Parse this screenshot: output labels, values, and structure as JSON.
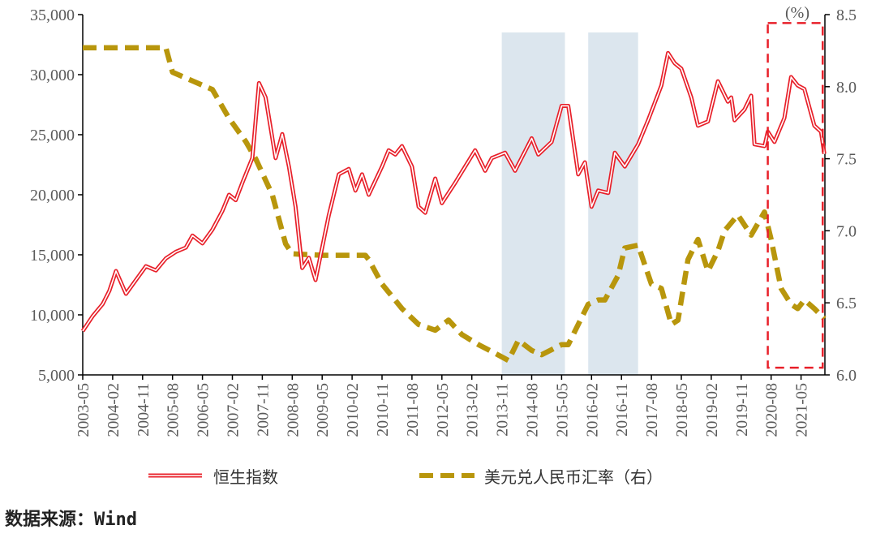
{
  "chart_data": {
    "type": "line",
    "title": "",
    "y_left": {
      "ylim": [
        5000,
        35000
      ],
      "ticks": [
        "5,000",
        "10,000",
        "15,000",
        "20,000",
        "25,000",
        "30,000",
        "35,000"
      ]
    },
    "y_right": {
      "unit_label": "(%)",
      "ylim": [
        6.0,
        8.5
      ],
      "ticks": [
        "6.0",
        "6.5",
        "7.0",
        "7.5",
        "8.0",
        "8.5"
      ]
    },
    "x_ticks": [
      "2003-05",
      "2004-02",
      "2004-11",
      "2005-08",
      "2006-05",
      "2007-02",
      "2007-11",
      "2008-08",
      "2009-05",
      "2010-02",
      "2010-11",
      "2011-08",
      "2012-05",
      "2013-02",
      "2013-11",
      "2014-08",
      "2015-05",
      "2016-02",
      "2016-11",
      "2017-08",
      "2018-05",
      "2019-02",
      "2019-11",
      "2020-08",
      "2021-05"
    ],
    "x_range": [
      "2003-05",
      "2021-12"
    ],
    "grid": false,
    "legend_position": "bottom",
    "shaded_periods": [
      [
        "2013-11",
        "2015-06"
      ],
      [
        "2016-01",
        "2017-04"
      ]
    ],
    "highlight_box": {
      "x": [
        "2020-07",
        "2021-12"
      ],
      "y_left": [
        5600,
        34300
      ],
      "color": "#E8202A"
    },
    "series": [
      {
        "name": "恒生指数",
        "axis": "left",
        "color": "#E8202A",
        "points": [
          [
            "2003-05",
            8650
          ],
          [
            "2003-08",
            9900
          ],
          [
            "2003-11",
            10900
          ],
          [
            "2004-01",
            12000
          ],
          [
            "2004-03",
            13650
          ],
          [
            "2004-06",
            11750
          ],
          [
            "2004-09",
            12900
          ],
          [
            "2004-12",
            14050
          ],
          [
            "2005-03",
            13700
          ],
          [
            "2005-06",
            14700
          ],
          [
            "2005-09",
            15250
          ],
          [
            "2005-12",
            15600
          ],
          [
            "2006-02",
            16600
          ],
          [
            "2006-05",
            15950
          ],
          [
            "2006-08",
            17100
          ],
          [
            "2006-11",
            18650
          ],
          [
            "2007-01",
            20000
          ],
          [
            "2007-03",
            19550
          ],
          [
            "2007-05",
            21000
          ],
          [
            "2007-08",
            23050
          ],
          [
            "2007-10",
            29300
          ],
          [
            "2007-12",
            28100
          ],
          [
            "2008-03",
            23050
          ],
          [
            "2008-05",
            25050
          ],
          [
            "2008-07",
            22350
          ],
          [
            "2008-09",
            19000
          ],
          [
            "2008-11",
            13900
          ],
          [
            "2009-01",
            14750
          ],
          [
            "2009-03",
            12900
          ],
          [
            "2009-07",
            18300
          ],
          [
            "2009-10",
            21700
          ],
          [
            "2010-01",
            22150
          ],
          [
            "2010-03",
            20350
          ],
          [
            "2010-05",
            21700
          ],
          [
            "2010-07",
            20000
          ],
          [
            "2010-11",
            22350
          ],
          [
            "2011-01",
            23700
          ],
          [
            "2011-03",
            23350
          ],
          [
            "2011-05",
            24050
          ],
          [
            "2011-08",
            22350
          ],
          [
            "2011-10",
            19000
          ],
          [
            "2011-12",
            18500
          ],
          [
            "2012-03",
            21350
          ],
          [
            "2012-05",
            19300
          ],
          [
            "2012-09",
            21000
          ],
          [
            "2013-03",
            23700
          ],
          [
            "2013-06",
            22000
          ],
          [
            "2013-08",
            23050
          ],
          [
            "2013-12",
            23500
          ],
          [
            "2014-03",
            22000
          ],
          [
            "2014-08",
            24700
          ],
          [
            "2014-10",
            23350
          ],
          [
            "2015-02",
            24400
          ],
          [
            "2015-05",
            27400
          ],
          [
            "2015-07",
            27400
          ],
          [
            "2015-10",
            21700
          ],
          [
            "2015-12",
            22700
          ],
          [
            "2016-02",
            19000
          ],
          [
            "2016-04",
            20350
          ],
          [
            "2016-07",
            20150
          ],
          [
            "2016-09",
            23500
          ],
          [
            "2016-12",
            22350
          ],
          [
            "2017-04",
            24200
          ],
          [
            "2017-07",
            26200
          ],
          [
            "2017-11",
            29100
          ],
          [
            "2018-01",
            31800
          ],
          [
            "2018-03",
            30950
          ],
          [
            "2018-05",
            30500
          ],
          [
            "2018-08",
            28100
          ],
          [
            "2018-10",
            25750
          ],
          [
            "2019-01",
            26100
          ],
          [
            "2019-04",
            29450
          ],
          [
            "2019-07",
            27750
          ],
          [
            "2019-08",
            28100
          ],
          [
            "2019-09",
            26200
          ],
          [
            "2019-12",
            27100
          ],
          [
            "2020-02",
            28250
          ],
          [
            "2020-03",
            24200
          ],
          [
            "2020-06",
            24050
          ],
          [
            "2020-07",
            25250
          ],
          [
            "2020-09",
            24400
          ],
          [
            "2020-12",
            26400
          ],
          [
            "2021-02",
            29800
          ],
          [
            "2021-04",
            29100
          ],
          [
            "2021-06",
            28800
          ],
          [
            "2021-09",
            25750
          ],
          [
            "2021-11",
            25250
          ],
          [
            "2021-12",
            23400
          ]
        ]
      },
      {
        "name": "美元兑人民币汇率（右）",
        "axis": "right",
        "color": "#B8960C",
        "points": [
          [
            "2003-05",
            8.27
          ],
          [
            "2005-06",
            8.27
          ],
          [
            "2005-08",
            8.1
          ],
          [
            "2006-02",
            8.04
          ],
          [
            "2006-08",
            7.98
          ],
          [
            "2007-01",
            7.78
          ],
          [
            "2007-06",
            7.62
          ],
          [
            "2007-09",
            7.5
          ],
          [
            "2008-02",
            7.25
          ],
          [
            "2008-06",
            6.91
          ],
          [
            "2008-08",
            6.84
          ],
          [
            "2009-05",
            6.83
          ],
          [
            "2010-06",
            6.83
          ],
          [
            "2010-07",
            6.8
          ],
          [
            "2010-11",
            6.63
          ],
          [
            "2011-05",
            6.46
          ],
          [
            "2011-10",
            6.35
          ],
          [
            "2012-03",
            6.31
          ],
          [
            "2012-07",
            6.38
          ],
          [
            "2012-11",
            6.28
          ],
          [
            "2013-04",
            6.21
          ],
          [
            "2013-09",
            6.15
          ],
          [
            "2014-01",
            6.1
          ],
          [
            "2014-04",
            6.24
          ],
          [
            "2014-08",
            6.17
          ],
          [
            "2014-11",
            6.14
          ],
          [
            "2015-05",
            6.21
          ],
          [
            "2015-07",
            6.21
          ],
          [
            "2015-10",
            6.35
          ],
          [
            "2016-01",
            6.49
          ],
          [
            "2016-04",
            6.52
          ],
          [
            "2016-06",
            6.52
          ],
          [
            "2016-10",
            6.69
          ],
          [
            "2016-12",
            6.88
          ],
          [
            "2017-04",
            6.9
          ],
          [
            "2017-08",
            6.63
          ],
          [
            "2017-11",
            6.6
          ],
          [
            "2018-02",
            6.35
          ],
          [
            "2018-04",
            6.38
          ],
          [
            "2018-07",
            6.8
          ],
          [
            "2018-10",
            6.94
          ],
          [
            "2019-01",
            6.72
          ],
          [
            "2019-04",
            6.86
          ],
          [
            "2019-06",
            7.0
          ],
          [
            "2019-10",
            7.11
          ],
          [
            "2020-02",
            6.97
          ],
          [
            "2020-06",
            7.13
          ],
          [
            "2020-08",
            6.94
          ],
          [
            "2020-11",
            6.6
          ],
          [
            "2021-02",
            6.49
          ],
          [
            "2021-04",
            6.46
          ],
          [
            "2021-06",
            6.52
          ],
          [
            "2021-09",
            6.46
          ],
          [
            "2021-12",
            6.39
          ]
        ]
      }
    ]
  },
  "legend": {
    "items": [
      {
        "label": "恒生指数"
      },
      {
        "label": "美元兑人民币汇率（右）"
      }
    ]
  },
  "source": "数据来源：Wind"
}
